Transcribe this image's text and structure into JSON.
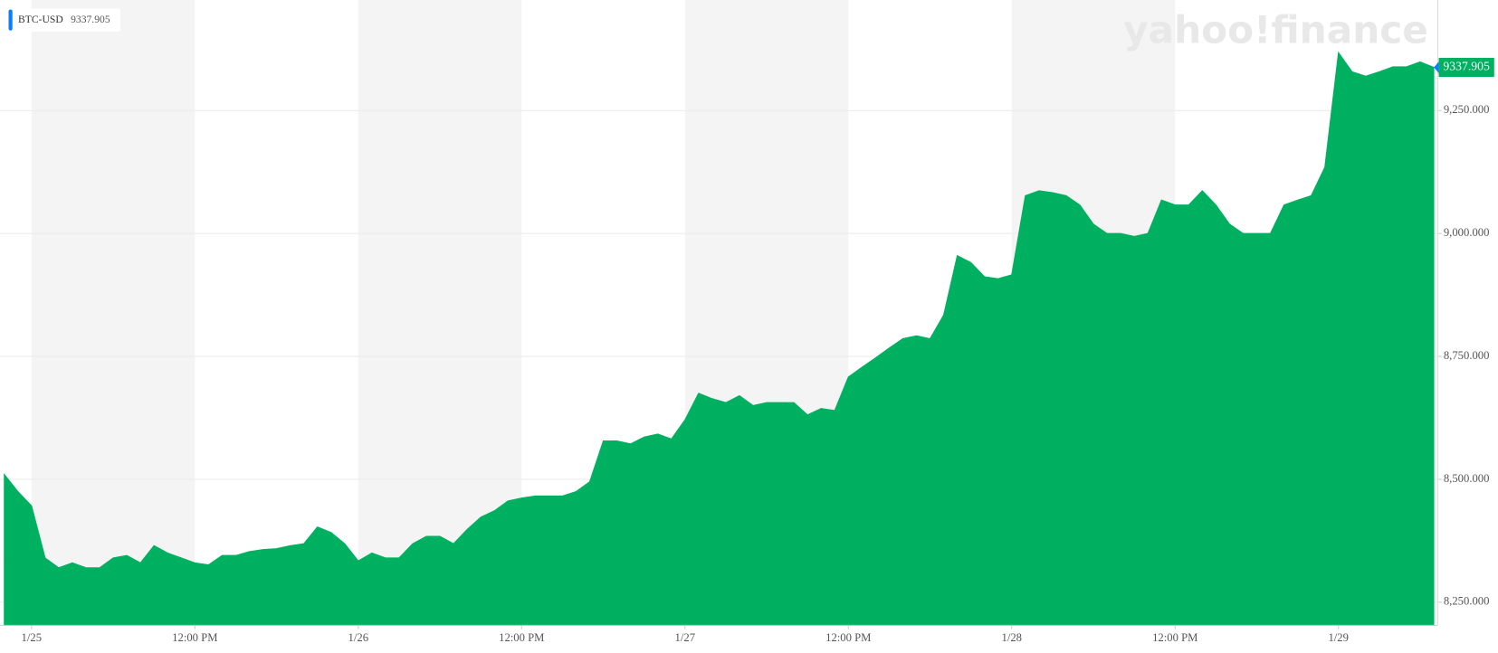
{
  "chart_data": {
    "type": "area",
    "logo": "yahoo!finance",
    "categories": [
      null,
      null,
      "1/25",
      null,
      null,
      null,
      null,
      null,
      null,
      null,
      null,
      null,
      null,
      null,
      "12:00 PM",
      null,
      null,
      null,
      null,
      null,
      null,
      null,
      null,
      null,
      null,
      null,
      "1/26",
      null,
      null,
      null,
      null,
      null,
      null,
      null,
      null,
      null,
      null,
      null,
      "12:00 PM",
      null,
      null,
      null,
      null,
      null,
      null,
      null,
      null,
      null,
      null,
      null,
      "1/27",
      null,
      null,
      null,
      null,
      null,
      null,
      null,
      null,
      null,
      null,
      null,
      "12:00 PM",
      null,
      null,
      null,
      null,
      null,
      null,
      null,
      null,
      null,
      null,
      null,
      "1/28",
      null,
      null,
      null,
      null,
      null,
      null,
      null,
      null,
      null,
      null,
      null,
      "12:00 PM",
      null,
      null,
      null,
      null,
      null,
      null,
      null,
      null,
      null,
      null,
      null,
      "1/29",
      null,
      null,
      null,
      null,
      null,
      null,
      null
    ],
    "series": [
      {
        "name": "BTC-USD",
        "color": "#00b061",
        "values": [
          8510,
          8475,
          8446,
          8340,
          8320,
          8330,
          8320,
          8320,
          8340,
          8345,
          8330,
          8365,
          8350,
          8340,
          8330,
          8326,
          8345,
          8345,
          8353,
          8357,
          8359,
          8365,
          8369,
          8403,
          8392,
          8369,
          8334,
          8350,
          8340,
          8340,
          8369,
          8384,
          8384,
          8369,
          8398,
          8423,
          8436,
          8456,
          8462,
          8466,
          8466,
          8466,
          8475,
          8495,
          8578,
          8578,
          8572,
          8586,
          8592,
          8582,
          8621,
          8675,
          8664,
          8656,
          8670,
          8650,
          8656,
          8656,
          8656,
          8631,
          8644,
          8640,
          8708,
          8728,
          8747,
          8767,
          8786,
          8792,
          8786,
          8834,
          8955,
          8941,
          8912,
          8908,
          8916,
          9077,
          9087,
          9083,
          9077,
          9058,
          9019,
          9000,
          9000,
          8994,
          9000,
          9068,
          9058,
          9058,
          9087,
          9058,
          9019,
          9000,
          9000,
          9000,
          9058,
          9068,
          9077,
          9135,
          9368,
          9329,
          9320,
          9329,
          9339,
          9339,
          9349,
          9337.905
        ]
      }
    ],
    "ylim": [
      8203,
      9475
    ],
    "yticks": [
      {
        "value": 8250,
        "label": "8,250.000"
      },
      {
        "value": 8500,
        "label": "8,500.000"
      },
      {
        "value": 8750,
        "label": "8,750.000"
      },
      {
        "value": 9000,
        "label": "9,000.000"
      },
      {
        "value": 9250,
        "label": "9,250.000"
      }
    ],
    "grid": true,
    "legend": "top-left"
  }
}
